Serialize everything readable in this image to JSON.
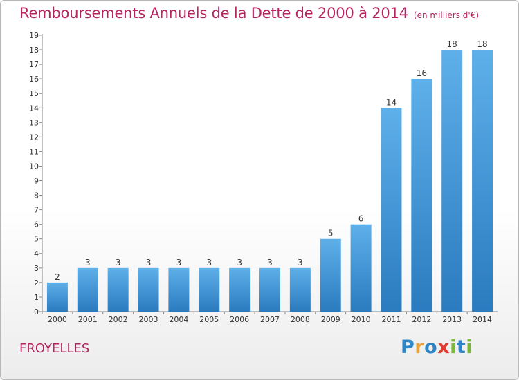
{
  "header": {
    "title": "Remboursements Annuels de la Dette de 2000 à 2014",
    "unit": "(en milliers d'€)"
  },
  "footer": {
    "city": "FROYELLES",
    "logo_text": "Proxiti"
  },
  "colors": {
    "title": "#b5245e",
    "bar_top": "#5eb0ea",
    "bar_bottom": "#2a7bbf",
    "logo_letters": [
      "#2f86c6",
      "#e8a23a",
      "#2f86c6",
      "#e23b2e",
      "#7cb63b",
      "#2f86c6",
      "#7cb63b"
    ]
  },
  "chart_data": {
    "type": "bar",
    "categories": [
      "2000",
      "2001",
      "2002",
      "2003",
      "2004",
      "2005",
      "2006",
      "2007",
      "2008",
      "2009",
      "2010",
      "2011",
      "2012",
      "2013",
      "2014"
    ],
    "values": [
      2,
      3,
      3,
      3,
      3,
      3,
      3,
      3,
      3,
      5,
      6,
      14,
      16,
      18,
      18
    ],
    "title": "Remboursements Annuels de la Dette de 2000 à 2014",
    "ylim": [
      0,
      19
    ],
    "yticks": [
      0,
      1,
      2,
      3,
      4,
      5,
      6,
      7,
      8,
      9,
      10,
      11,
      12,
      13,
      14,
      15,
      16,
      17,
      18,
      19
    ],
    "grid": false,
    "data_labels": true
  }
}
